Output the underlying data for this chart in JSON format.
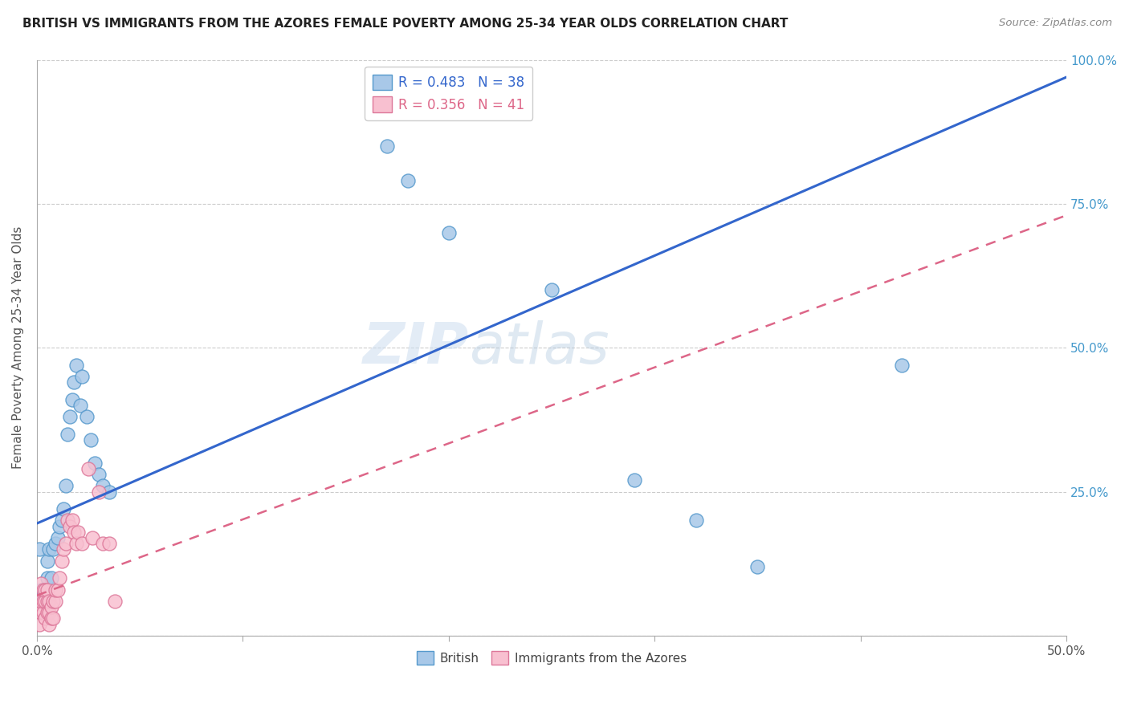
{
  "title": "BRITISH VS IMMIGRANTS FROM THE AZORES FEMALE POVERTY AMONG 25-34 YEAR OLDS CORRELATION CHART",
  "source": "Source: ZipAtlas.com",
  "ylabel": "Female Poverty Among 25-34 Year Olds",
  "watermark_zip": "ZIP",
  "watermark_atlas": "atlas",
  "xlim": [
    0.0,
    0.5
  ],
  "ylim": [
    0.0,
    1.0
  ],
  "xticks": [
    0.0,
    0.1,
    0.2,
    0.3,
    0.4,
    0.5
  ],
  "xticklabels_left": "0.0%",
  "xticklabels_right": "50.0%",
  "yticks": [
    0.0,
    0.25,
    0.5,
    0.75,
    1.0
  ],
  "yticklabels": [
    "",
    "25.0%",
    "50.0%",
    "75.0%",
    "100.0%"
  ],
  "british_color": "#a8c8e8",
  "british_edge_color": "#5599cc",
  "azores_color": "#f8c0d0",
  "azores_edge_color": "#dd7799",
  "british_line_color": "#3366cc",
  "azores_line_color": "#dd6688",
  "R_british": 0.483,
  "N_british": 38,
  "R_azores": 0.356,
  "N_azores": 41,
  "british_x": [
    0.001,
    0.002,
    0.002,
    0.003,
    0.003,
    0.004,
    0.005,
    0.005,
    0.006,
    0.007,
    0.008,
    0.009,
    0.01,
    0.011,
    0.012,
    0.013,
    0.014,
    0.015,
    0.016,
    0.017,
    0.018,
    0.019,
    0.021,
    0.022,
    0.024,
    0.026,
    0.028,
    0.03,
    0.032,
    0.035,
    0.17,
    0.18,
    0.2,
    0.25,
    0.29,
    0.32,
    0.35,
    0.42
  ],
  "british_y": [
    0.15,
    0.06,
    0.08,
    0.06,
    0.07,
    0.08,
    0.1,
    0.13,
    0.15,
    0.1,
    0.15,
    0.16,
    0.17,
    0.19,
    0.2,
    0.22,
    0.26,
    0.35,
    0.38,
    0.41,
    0.44,
    0.47,
    0.4,
    0.45,
    0.38,
    0.34,
    0.3,
    0.28,
    0.26,
    0.25,
    0.85,
    0.79,
    0.7,
    0.6,
    0.27,
    0.2,
    0.12,
    0.47
  ],
  "azores_x": [
    0.001,
    0.001,
    0.002,
    0.002,
    0.002,
    0.003,
    0.003,
    0.003,
    0.004,
    0.004,
    0.004,
    0.005,
    0.005,
    0.005,
    0.006,
    0.006,
    0.006,
    0.007,
    0.007,
    0.008,
    0.008,
    0.009,
    0.009,
    0.01,
    0.011,
    0.012,
    0.013,
    0.014,
    0.015,
    0.016,
    0.017,
    0.018,
    0.019,
    0.02,
    0.022,
    0.025,
    0.027,
    0.03,
    0.032,
    0.035,
    0.038
  ],
  "azores_y": [
    0.02,
    0.05,
    0.04,
    0.06,
    0.09,
    0.04,
    0.06,
    0.08,
    0.03,
    0.06,
    0.08,
    0.04,
    0.06,
    0.08,
    0.02,
    0.04,
    0.06,
    0.03,
    0.05,
    0.03,
    0.06,
    0.06,
    0.08,
    0.08,
    0.1,
    0.13,
    0.15,
    0.16,
    0.2,
    0.19,
    0.2,
    0.18,
    0.16,
    0.18,
    0.16,
    0.29,
    0.17,
    0.25,
    0.16,
    0.16,
    0.06
  ],
  "british_line_x0": 0.0,
  "british_line_y0": 0.195,
  "british_line_x1": 0.5,
  "british_line_y1": 0.97,
  "azores_line_x0": 0.0,
  "azores_line_y0": 0.07,
  "azores_line_x1": 0.5,
  "azores_line_y1": 0.73
}
